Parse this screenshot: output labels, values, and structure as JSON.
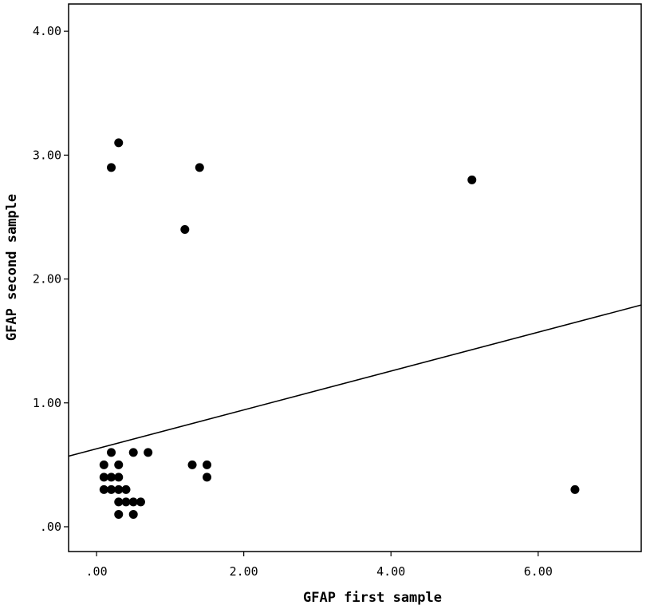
{
  "chart_data": {
    "type": "scatter",
    "title": "",
    "xlabel": "GFAP first sample",
    "ylabel": "GFAP second sample",
    "xlim": [
      -0.38,
      7.4
    ],
    "ylim": [
      -0.2,
      4.22
    ],
    "x_ticks": [
      0,
      2,
      4,
      6
    ],
    "x_tick_labels": [
      ".00",
      "2.00",
      "4.00",
      "6.00"
    ],
    "y_ticks": [
      0,
      1,
      2,
      3,
      4
    ],
    "y_tick_labels": [
      ".00",
      "1.00",
      "2.00",
      "3.00",
      "4.00"
    ],
    "grid": false,
    "legend": "none",
    "marker_color": "#000000",
    "points": [
      {
        "x": 0.3,
        "y": 3.1
      },
      {
        "x": 0.2,
        "y": 2.9
      },
      {
        "x": 1.4,
        "y": 2.9
      },
      {
        "x": 5.1,
        "y": 2.8
      },
      {
        "x": 1.2,
        "y": 2.4
      },
      {
        "x": 0.2,
        "y": 0.6
      },
      {
        "x": 0.5,
        "y": 0.6
      },
      {
        "x": 0.7,
        "y": 0.6
      },
      {
        "x": 0.1,
        "y": 0.5
      },
      {
        "x": 0.3,
        "y": 0.5
      },
      {
        "x": 1.3,
        "y": 0.5
      },
      {
        "x": 1.5,
        "y": 0.5
      },
      {
        "x": 0.1,
        "y": 0.4
      },
      {
        "x": 0.2,
        "y": 0.4
      },
      {
        "x": 0.3,
        "y": 0.4
      },
      {
        "x": 1.5,
        "y": 0.4
      },
      {
        "x": 0.1,
        "y": 0.3
      },
      {
        "x": 0.2,
        "y": 0.3
      },
      {
        "x": 0.3,
        "y": 0.3
      },
      {
        "x": 0.4,
        "y": 0.3
      },
      {
        "x": 6.5,
        "y": 0.3
      },
      {
        "x": 0.3,
        "y": 0.2
      },
      {
        "x": 0.4,
        "y": 0.2
      },
      {
        "x": 0.5,
        "y": 0.2
      },
      {
        "x": 0.6,
        "y": 0.2
      },
      {
        "x": 0.3,
        "y": 0.1
      },
      {
        "x": 0.5,
        "y": 0.1
      }
    ],
    "fit_line": {
      "x": [
        -0.38,
        7.4
      ],
      "y": [
        0.57,
        1.79
      ]
    }
  }
}
